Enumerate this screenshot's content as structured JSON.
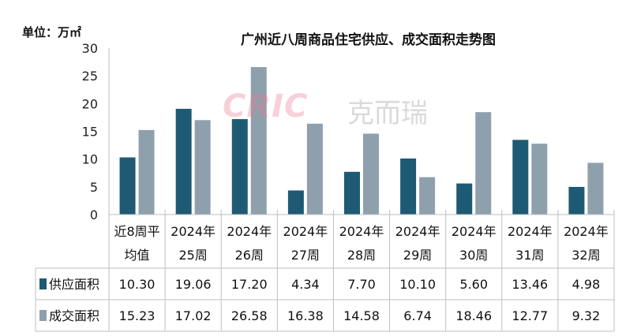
{
  "chart_data": {
    "type": "bar",
    "title": "广州近八周商品住宅供应、成交面积走势图",
    "unit_label": "单位：万㎡",
    "watermark": {
      "logo": "CRIC",
      "text": "克而瑞"
    },
    "ylim": [
      0,
      30
    ],
    "yticks": [
      0,
      5,
      10,
      15,
      20,
      25,
      30
    ],
    "categories": [
      [
        "近8周平",
        "均值"
      ],
      [
        "2024年",
        "25周"
      ],
      [
        "2024年",
        "26周"
      ],
      [
        "2024年",
        "27周"
      ],
      [
        "2024年",
        "28周"
      ],
      [
        "2024年",
        "29周"
      ],
      [
        "2024年",
        "30周"
      ],
      [
        "2024年",
        "31周"
      ],
      [
        "2024年",
        "32周"
      ]
    ],
    "series": [
      {
        "name": "供应面积",
        "color": "#1f5a74",
        "values": [
          10.3,
          19.06,
          17.2,
          4.34,
          7.7,
          10.1,
          5.6,
          13.46,
          4.98
        ]
      },
      {
        "name": "成交面积",
        "color": "#8fa0ad",
        "values": [
          15.23,
          17.02,
          26.58,
          16.38,
          14.58,
          6.74,
          18.46,
          12.77,
          9.32
        ]
      }
    ]
  }
}
